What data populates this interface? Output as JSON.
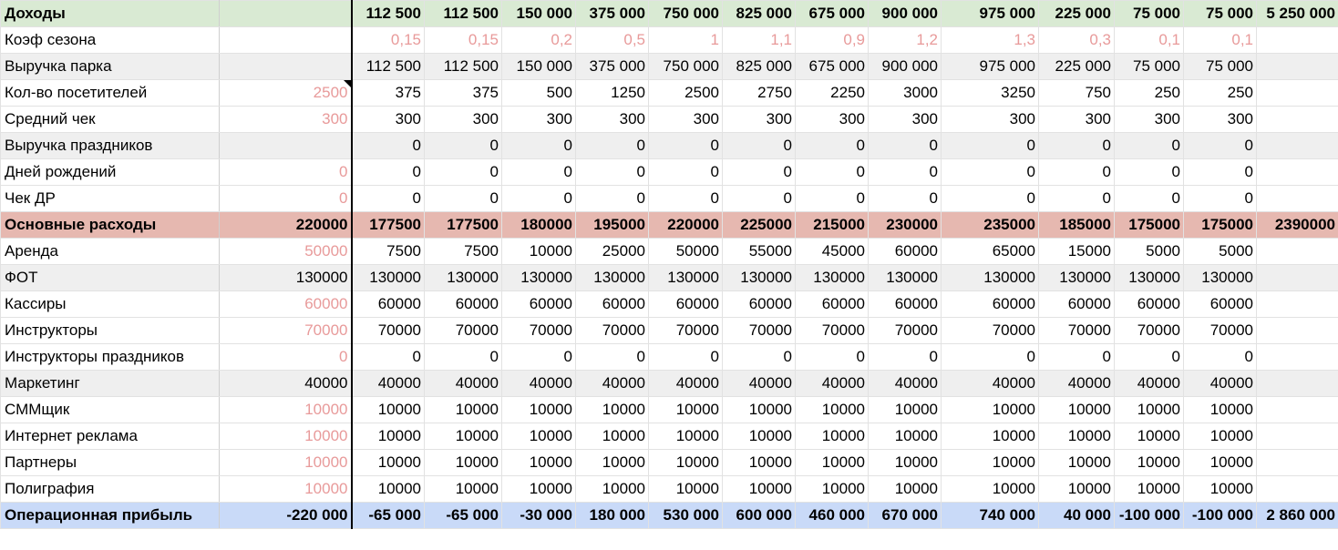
{
  "rows": [
    {
      "id": "income",
      "style": "hl-green bold",
      "cells": [
        "Доходы",
        "",
        "112 500",
        "112 500",
        "150 000",
        "375 000",
        "750 000",
        "825 000",
        "675 000",
        "900 000",
        "975 000",
        "225 000",
        "75 000",
        "75 000",
        "5 250 000"
      ]
    },
    {
      "id": "season-coef",
      "style": "",
      "pinkCols": [
        2,
        3,
        4,
        5,
        6,
        7,
        8,
        9,
        10,
        11,
        12,
        13
      ],
      "cells": [
        "Коэф сезона",
        "",
        "0,15",
        "0,15",
        "0,2",
        "0,5",
        "1",
        "1,1",
        "0,9",
        "1,2",
        "1,3",
        "0,3",
        "0,1",
        "0,1",
        ""
      ]
    },
    {
      "id": "park-revenue",
      "style": "hl-gray",
      "cells": [
        "Выручка парка",
        "",
        "112 500",
        "112 500",
        "150 000",
        "375 000",
        "750 000",
        "825 000",
        "675 000",
        "900 000",
        "975 000",
        "225 000",
        "75 000",
        "75 000",
        ""
      ]
    },
    {
      "id": "visitors",
      "style": "",
      "pinkCols": [
        1
      ],
      "note": true,
      "cells": [
        "Кол-во посетителей",
        "2500",
        "375",
        "375",
        "500",
        "1250",
        "2500",
        "2750",
        "2250",
        "3000",
        "3250",
        "750",
        "250",
        "250",
        ""
      ]
    },
    {
      "id": "avg-check",
      "style": "",
      "pinkCols": [
        1
      ],
      "cells": [
        "Средний чек",
        "300",
        "300",
        "300",
        "300",
        "300",
        "300",
        "300",
        "300",
        "300",
        "300",
        "300",
        "300",
        "300",
        ""
      ]
    },
    {
      "id": "holiday-revenue",
      "style": "hl-gray",
      "cells": [
        "Выручка праздников",
        "",
        "0",
        "0",
        "0",
        "0",
        "0",
        "0",
        "0",
        "0",
        "0",
        "0",
        "0",
        "0",
        ""
      ]
    },
    {
      "id": "birthdays",
      "style": "",
      "pinkCols": [
        1
      ],
      "cells": [
        "Дней рождений",
        "0",
        "0",
        "0",
        "0",
        "0",
        "0",
        "0",
        "0",
        "0",
        "0",
        "0",
        "0",
        "0",
        ""
      ]
    },
    {
      "id": "birthday-check",
      "style": "",
      "pinkCols": [
        1
      ],
      "cells": [
        "Чек ДР",
        "0",
        "0",
        "0",
        "0",
        "0",
        "0",
        "0",
        "0",
        "0",
        "0",
        "0",
        "0",
        "0",
        ""
      ]
    },
    {
      "id": "main-expenses",
      "style": "hl-red bold",
      "cells": [
        "Основные расходы",
        "220000",
        "177500",
        "177500",
        "180000",
        "195000",
        "220000",
        "225000",
        "215000",
        "230000",
        "235000",
        "185000",
        "175000",
        "175000",
        "2390000"
      ]
    },
    {
      "id": "rent",
      "style": "",
      "pinkCols": [
        1
      ],
      "cells": [
        "Аренда",
        "50000",
        "7500",
        "7500",
        "10000",
        "25000",
        "50000",
        "55000",
        "45000",
        "60000",
        "65000",
        "15000",
        "5000",
        "5000",
        ""
      ]
    },
    {
      "id": "payroll",
      "style": "hl-gray",
      "cells": [
        "ФОТ",
        "130000",
        "130000",
        "130000",
        "130000",
        "130000",
        "130000",
        "130000",
        "130000",
        "130000",
        "130000",
        "130000",
        "130000",
        "130000",
        ""
      ]
    },
    {
      "id": "cashiers",
      "style": "indent",
      "pinkCols": [
        1
      ],
      "cells": [
        "Кассиры",
        "60000",
        "60000",
        "60000",
        "60000",
        "60000",
        "60000",
        "60000",
        "60000",
        "60000",
        "60000",
        "60000",
        "60000",
        "60000",
        ""
      ]
    },
    {
      "id": "instructors",
      "style": "indent",
      "pinkCols": [
        1
      ],
      "cells": [
        "Инструкторы",
        "70000",
        "70000",
        "70000",
        "70000",
        "70000",
        "70000",
        "70000",
        "70000",
        "70000",
        "70000",
        "70000",
        "70000",
        "70000",
        ""
      ]
    },
    {
      "id": "holiday-instructors",
      "style": "indent",
      "pinkCols": [
        1
      ],
      "cells": [
        "Инструкторы праздников",
        "0",
        "0",
        "0",
        "0",
        "0",
        "0",
        "0",
        "0",
        "0",
        "0",
        "0",
        "0",
        "0",
        ""
      ]
    },
    {
      "id": "marketing",
      "style": "hl-gray",
      "cells": [
        "Маркетинг",
        "40000",
        "40000",
        "40000",
        "40000",
        "40000",
        "40000",
        "40000",
        "40000",
        "40000",
        "40000",
        "40000",
        "40000",
        "40000",
        ""
      ]
    },
    {
      "id": "smm",
      "style": "indent",
      "pinkCols": [
        1
      ],
      "cells": [
        "СММщик",
        "10000",
        "10000",
        "10000",
        "10000",
        "10000",
        "10000",
        "10000",
        "10000",
        "10000",
        "10000",
        "10000",
        "10000",
        "10000",
        ""
      ]
    },
    {
      "id": "internet-ads",
      "style": "indent",
      "pinkCols": [
        1
      ],
      "cells": [
        "Интернет реклама",
        "10000",
        "10000",
        "10000",
        "10000",
        "10000",
        "10000",
        "10000",
        "10000",
        "10000",
        "10000",
        "10000",
        "10000",
        "10000",
        ""
      ]
    },
    {
      "id": "partners",
      "style": "indent",
      "pinkCols": [
        1
      ],
      "cells": [
        "Партнеры",
        "10000",
        "10000",
        "10000",
        "10000",
        "10000",
        "10000",
        "10000",
        "10000",
        "10000",
        "10000",
        "10000",
        "10000",
        "10000",
        ""
      ]
    },
    {
      "id": "printing",
      "style": "indent",
      "pinkCols": [
        1
      ],
      "cells": [
        "Полиграфия",
        "10000",
        "10000",
        "10000",
        "10000",
        "10000",
        "10000",
        "10000",
        "10000",
        "10000",
        "10000",
        "10000",
        "10000",
        "10000",
        ""
      ]
    },
    {
      "id": "operating-profit",
      "style": "hl-blue bold",
      "cells": [
        "Операционная прибыль",
        "-220 000",
        "-65 000",
        "-65 000",
        "-30 000",
        "180 000",
        "530 000",
        "600 000",
        "460 000",
        "670 000",
        "740 000",
        "40 000",
        "-100 000",
        "-100 000",
        "2 860 000"
      ]
    }
  ]
}
